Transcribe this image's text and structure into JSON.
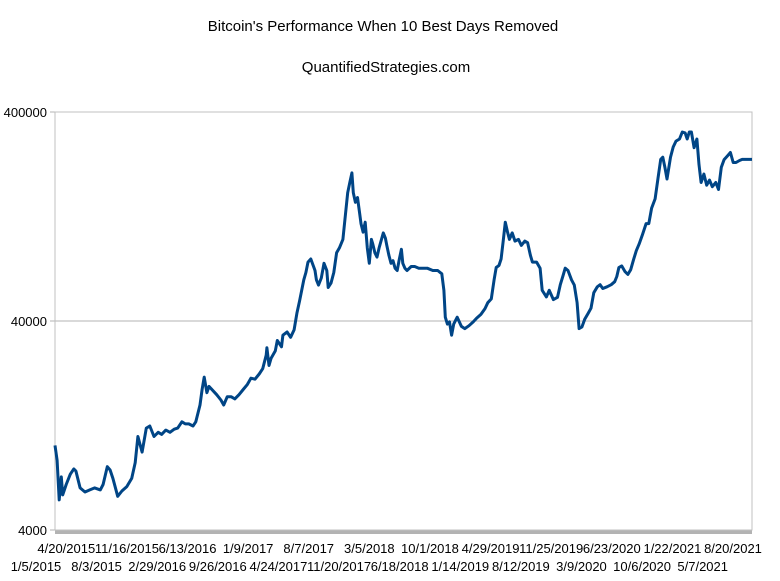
{
  "chart_data": {
    "type": "line",
    "title": "Bitcoin's Performance When 10 Best Days Removed",
    "subtitle": "QuantifiedStrategies.com",
    "xlabel": "",
    "ylabel": "",
    "yscale": "log",
    "ylim": [
      4000,
      400000
    ],
    "yticks": [
      "400000",
      "40000",
      "4000"
    ],
    "ytick_values": [
      400000,
      40000,
      4000
    ],
    "xtick_labels_upper": [
      "4/20/2015",
      "11/16/2015",
      "6/13/2016",
      "1/9/2017",
      "8/7/2017",
      "3/5/2018",
      "10/1/2018",
      "4/29/2019",
      "11/25/2019",
      "6/23/2020",
      "1/22/2021",
      "8/20/2021"
    ],
    "xtick_labels_lower": [
      "1/5/2015",
      "8/3/2015",
      "2/29/2016",
      "9/26/2016",
      "4/24/2017",
      "11/20/2017",
      "6/18/2018",
      "1/14/2019",
      "8/12/2019",
      "3/9/2020",
      "10/6/2020",
      "5/7/2021"
    ],
    "grid": "horizontal",
    "legend": "none",
    "series": [
      {
        "name": "Bitcoin (10 best days removed)",
        "color": "#004586",
        "points": [
          [
            0.0,
            10160
          ],
          [
            0.003,
            8630
          ],
          [
            0.006,
            5570
          ],
          [
            0.009,
            7180
          ],
          [
            0.011,
            5890
          ],
          [
            0.016,
            6600
          ],
          [
            0.022,
            7400
          ],
          [
            0.027,
            7840
          ],
          [
            0.03,
            7660
          ],
          [
            0.036,
            6360
          ],
          [
            0.043,
            6080
          ],
          [
            0.05,
            6220
          ],
          [
            0.057,
            6360
          ],
          [
            0.065,
            6220
          ],
          [
            0.069,
            6600
          ],
          [
            0.075,
            8030
          ],
          [
            0.079,
            7750
          ],
          [
            0.083,
            7060
          ],
          [
            0.09,
            5800
          ],
          [
            0.096,
            6150
          ],
          [
            0.103,
            6450
          ],
          [
            0.11,
            7060
          ],
          [
            0.115,
            8400
          ],
          [
            0.119,
            11210
          ],
          [
            0.125,
            9440
          ],
          [
            0.131,
            12290
          ],
          [
            0.136,
            12580
          ],
          [
            0.142,
            11210
          ],
          [
            0.148,
            11740
          ],
          [
            0.153,
            11470
          ],
          [
            0.159,
            12020
          ],
          [
            0.165,
            11740
          ],
          [
            0.171,
            12150
          ],
          [
            0.176,
            12290
          ],
          [
            0.182,
            13180
          ],
          [
            0.187,
            12880
          ],
          [
            0.192,
            12880
          ],
          [
            0.198,
            12580
          ],
          [
            0.202,
            13180
          ],
          [
            0.205,
            14460
          ],
          [
            0.208,
            15860
          ],
          [
            0.211,
            18800
          ],
          [
            0.214,
            21560
          ],
          [
            0.218,
            18160
          ],
          [
            0.221,
            19460
          ],
          [
            0.232,
            17750
          ],
          [
            0.238,
            16760
          ],
          [
            0.242,
            15860
          ],
          [
            0.247,
            17350
          ],
          [
            0.253,
            17350
          ],
          [
            0.258,
            16950
          ],
          [
            0.264,
            17750
          ],
          [
            0.27,
            18800
          ],
          [
            0.276,
            19900
          ],
          [
            0.281,
            21310
          ],
          [
            0.287,
            21060
          ],
          [
            0.293,
            22320
          ],
          [
            0.298,
            23640
          ],
          [
            0.303,
            27470
          ],
          [
            0.304,
            29760
          ],
          [
            0.307,
            24490
          ],
          [
            0.31,
            26550
          ],
          [
            0.316,
            28770
          ],
          [
            0.319,
            32280
          ],
          [
            0.325,
            30100
          ],
          [
            0.327,
            34220
          ],
          [
            0.333,
            35420
          ],
          [
            0.338,
            33440
          ],
          [
            0.343,
            36260
          ],
          [
            0.347,
            43580
          ],
          [
            0.351,
            49990
          ],
          [
            0.354,
            56120
          ],
          [
            0.357,
            62960
          ],
          [
            0.36,
            68220
          ],
          [
            0.363,
            76560
          ],
          [
            0.367,
            79210
          ],
          [
            0.371,
            72870
          ],
          [
            0.373,
            69800
          ],
          [
            0.375,
            63010
          ],
          [
            0.378,
            59390
          ],
          [
            0.382,
            64230
          ],
          [
            0.386,
            75560
          ],
          [
            0.39,
            69800
          ],
          [
            0.392,
            57870
          ],
          [
            0.396,
            60750
          ],
          [
            0.4,
            68220
          ],
          [
            0.404,
            84830
          ],
          [
            0.408,
            89510
          ],
          [
            0.413,
            98260
          ],
          [
            0.417,
            131520
          ],
          [
            0.42,
            164500
          ],
          [
            0.423,
            183890
          ],
          [
            0.426,
            204590
          ],
          [
            0.428,
            164500
          ],
          [
            0.431,
            147850
          ],
          [
            0.434,
            155920
          ],
          [
            0.437,
            131520
          ],
          [
            0.439,
            116960
          ],
          [
            0.442,
            106410
          ],
          [
            0.445,
            118730
          ],
          [
            0.448,
            89510
          ],
          [
            0.451,
            75560
          ],
          [
            0.454,
            98260
          ],
          [
            0.456,
            93300
          ],
          [
            0.459,
            84830
          ],
          [
            0.462,
            80890
          ],
          [
            0.465,
            89510
          ],
          [
            0.471,
            105590
          ],
          [
            0.474,
            99630
          ],
          [
            0.476,
            92020
          ],
          [
            0.479,
            82470
          ],
          [
            0.482,
            75560
          ],
          [
            0.485,
            77720
          ],
          [
            0.488,
            71600
          ],
          [
            0.491,
            69800
          ],
          [
            0.494,
            78920
          ],
          [
            0.497,
            88170
          ],
          [
            0.499,
            75560
          ],
          [
            0.502,
            71600
          ],
          [
            0.505,
            69800
          ],
          [
            0.511,
            72950
          ],
          [
            0.516,
            72950
          ],
          [
            0.522,
            71600
          ],
          [
            0.528,
            71600
          ],
          [
            0.534,
            71600
          ],
          [
            0.542,
            69800
          ],
          [
            0.549,
            69800
          ],
          [
            0.555,
            67300
          ],
          [
            0.558,
            56120
          ],
          [
            0.56,
            41690
          ],
          [
            0.563,
            38640
          ],
          [
            0.566,
            39590
          ],
          [
            0.569,
            34220
          ],
          [
            0.572,
            38640
          ],
          [
            0.577,
            41690
          ],
          [
            0.583,
            37700
          ],
          [
            0.588,
            36770
          ],
          [
            0.594,
            37970
          ],
          [
            0.6,
            39590
          ],
          [
            0.605,
            41290
          ],
          [
            0.611,
            43040
          ],
          [
            0.617,
            45840
          ],
          [
            0.621,
            48940
          ],
          [
            0.626,
            51000
          ],
          [
            0.63,
            63010
          ],
          [
            0.633,
            72080
          ],
          [
            0.637,
            73780
          ],
          [
            0.64,
            79210
          ],
          [
            0.643,
            96440
          ],
          [
            0.646,
            118730
          ],
          [
            0.649,
            107220
          ],
          [
            0.652,
            98260
          ],
          [
            0.656,
            105590
          ],
          [
            0.66,
            96440
          ],
          [
            0.665,
            98260
          ],
          [
            0.669,
            92020
          ],
          [
            0.674,
            96440
          ],
          [
            0.678,
            94780
          ],
          [
            0.682,
            82470
          ],
          [
            0.685,
            76560
          ],
          [
            0.691,
            76560
          ],
          [
            0.696,
            71600
          ],
          [
            0.699,
            56120
          ],
          [
            0.705,
            52190
          ],
          [
            0.709,
            56120
          ],
          [
            0.715,
            50610
          ],
          [
            0.721,
            51910
          ],
          [
            0.725,
            59690
          ],
          [
            0.729,
            66140
          ],
          [
            0.732,
            71600
          ],
          [
            0.736,
            69800
          ],
          [
            0.741,
            63010
          ],
          [
            0.745,
            59390
          ],
          [
            0.749,
            48940
          ],
          [
            0.752,
            36770
          ],
          [
            0.756,
            37440
          ],
          [
            0.76,
            40740
          ],
          [
            0.765,
            43580
          ],
          [
            0.769,
            46070
          ],
          [
            0.773,
            54620
          ],
          [
            0.778,
            58300
          ],
          [
            0.782,
            59690
          ],
          [
            0.786,
            57210
          ],
          [
            0.792,
            58300
          ],
          [
            0.798,
            59690
          ],
          [
            0.803,
            61640
          ],
          [
            0.806,
            65300
          ],
          [
            0.809,
            72080
          ],
          [
            0.813,
            73370
          ],
          [
            0.818,
            68860
          ],
          [
            0.822,
            66840
          ],
          [
            0.826,
            70420
          ],
          [
            0.83,
            78460
          ],
          [
            0.834,
            86790
          ],
          [
            0.838,
            93300
          ],
          [
            0.843,
            104100
          ],
          [
            0.848,
            116960
          ],
          [
            0.852,
            116960
          ],
          [
            0.856,
            138540
          ],
          [
            0.861,
            153580
          ],
          [
            0.865,
            191220
          ],
          [
            0.869,
            237390
          ],
          [
            0.872,
            243160
          ],
          [
            0.875,
            217590
          ],
          [
            0.878,
            191220
          ],
          [
            0.883,
            243160
          ],
          [
            0.887,
            272090
          ],
          [
            0.891,
            290160
          ],
          [
            0.896,
            297130
          ],
          [
            0.9,
            320900
          ],
          [
            0.904,
            317640
          ],
          [
            0.907,
            297130
          ],
          [
            0.91,
            320900
          ],
          [
            0.913,
            320900
          ],
          [
            0.917,
            270060
          ],
          [
            0.921,
            297130
          ],
          [
            0.924,
            224000
          ],
          [
            0.927,
            183890
          ],
          [
            0.931,
            201830
          ],
          [
            0.935,
            178580
          ],
          [
            0.939,
            188890
          ],
          [
            0.943,
            175620
          ],
          [
            0.948,
            183890
          ],
          [
            0.952,
            170230
          ],
          [
            0.956,
            217590
          ],
          [
            0.96,
            236630
          ],
          [
            0.965,
            247050
          ],
          [
            0.969,
            256100
          ],
          [
            0.973,
            229210
          ],
          [
            0.977,
            229210
          ],
          [
            0.982,
            234300
          ],
          [
            0.986,
            237390
          ],
          [
            1.0,
            237390
          ]
        ]
      }
    ]
  }
}
